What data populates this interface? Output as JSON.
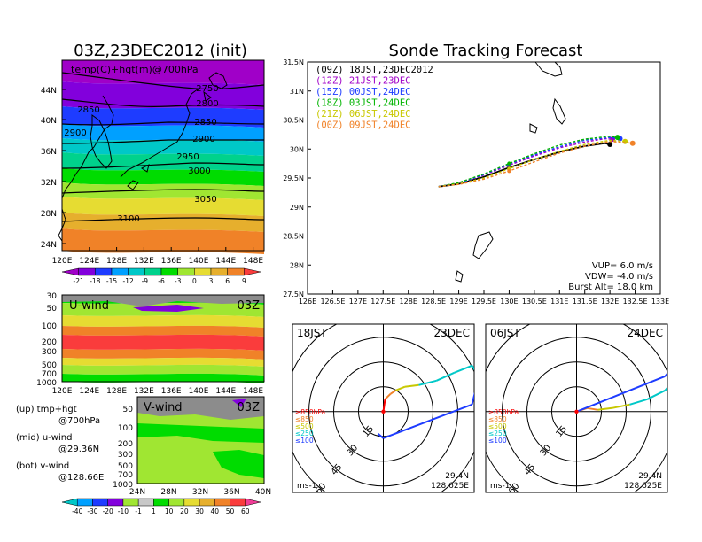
{
  "left_title": "03Z,23DEC2012 (init)",
  "right_title": "Sonde Tracking Forecast",
  "map_panel": {
    "label": "temp(C)+hgt(m)@700hPa",
    "lat_ticks": [
      "44N",
      "40N",
      "36N",
      "32N",
      "28N",
      "24N"
    ],
    "lon_ticks": [
      "120E",
      "124E",
      "128E",
      "132E",
      "136E",
      "140E",
      "144E",
      "148E"
    ],
    "contour_labels": [
      "2750",
      "2800",
      "2850",
      "2850",
      "2900",
      "2900",
      "2950",
      "3000",
      "3050",
      "3100"
    ],
    "colorbar_labels": [
      "-21",
      "-18",
      "-15",
      "-12",
      "-9",
      "-6",
      "-3",
      "0",
      "3",
      "6",
      "9"
    ],
    "colorbar_colors": [
      "#a000c8",
      "#8200dc",
      "#1e3cff",
      "#00a0ff",
      "#00c8c8",
      "#00d28c",
      "#00dc00",
      "#a0e632",
      "#e6dc32",
      "#e6af2d",
      "#f08228",
      "#fa3c3c"
    ]
  },
  "uwind_panel": {
    "title": "U-wind",
    "time": "03Z",
    "p_ticks": [
      "30",
      "50",
      "100",
      "200",
      "300",
      "500",
      "700",
      "1000"
    ],
    "lon_ticks": [
      "120E",
      "124E",
      "128E",
      "132E",
      "136E",
      "140E",
      "144E",
      "148E"
    ]
  },
  "vwind_panel": {
    "title": "V-wind",
    "time": "03Z",
    "p_ticks": [
      "50",
      "100",
      "200",
      "300",
      "500",
      "700",
      "1000"
    ],
    "lat_ticks": [
      "24N",
      "28N",
      "32N",
      "36N",
      "40N"
    ],
    "colorbar_labels": [
      "-40",
      "-30",
      "-20",
      "-10",
      "-1",
      "1",
      "10",
      "20",
      "30",
      "40",
      "50",
      "60"
    ],
    "colorbar_colors": [
      "#00c8c8",
      "#00a0ff",
      "#1e3cff",
      "#8200dc",
      "#a0e632",
      "#c8c8c8",
      "#00dc00",
      "#a0e632",
      "#e6dc32",
      "#e6af2d",
      "#f08228",
      "#fa3c3c",
      "#f03c96"
    ]
  },
  "legend_notes": [
    {
      "head": "(up) tmp+hgt",
      "sub": "@700hPa"
    },
    {
      "head": "(mid) u-wind",
      "sub": "@29.36N"
    },
    {
      "head": "(bot) v-wind",
      "sub": "@128.66E"
    }
  ],
  "track_panel": {
    "runs": [
      {
        "label": "(09Z)  18JST,23DEC2012",
        "color": "#000000"
      },
      {
        "label": "(12Z)  21JST,23DEC",
        "color": "#a000c8"
      },
      {
        "label": "(15Z)  00JST,24DEC",
        "color": "#1e3cff"
      },
      {
        "label": "(18Z)  03JST,24DEC",
        "color": "#00b400"
      },
      {
        "label": "(21Z)  06JST,24DEC",
        "color": "#c8c800"
      },
      {
        "label": "(00Z)  09JST,24DEC",
        "color": "#f08228"
      }
    ],
    "lat_ticks": [
      "31.5N",
      "31N",
      "30.5N",
      "30N",
      "29.5N",
      "29N",
      "28.5N",
      "28N",
      "27.5N"
    ],
    "lon_ticks": [
      "126E",
      "126.5E",
      "127E",
      "127.5E",
      "128E",
      "128.5E",
      "129E",
      "129.5E",
      "130E",
      "130.5E",
      "131E",
      "131.5E",
      "132E",
      "132.5E",
      "133E"
    ],
    "params": [
      "VUP= 6.0 m/s",
      "VDW= -4.0 m/s",
      "Burst Alt= 18.0 km"
    ]
  },
  "hodographs": [
    {
      "time": "18JST",
      "date": "23DEC",
      "lat": "29.4N",
      "lon": "128.625E",
      "unit": "ms-1",
      "rings": [
        "15",
        "30",
        "45",
        "60"
      ],
      "levels": [
        "≥850hPa",
        "≤850",
        "≤500",
        "≤250",
        "≤100"
      ],
      "level_colors": [
        "#fa0000",
        "#f08228",
        "#c8c800",
        "#00c8c8",
        "#1e3cff"
      ]
    },
    {
      "time": "06JST",
      "date": "24DEC",
      "lat": "29.4N",
      "lon": "128.625E",
      "unit": "ms-1",
      "rings": [
        "15",
        "30",
        "45",
        "60"
      ],
      "levels": [
        "≥850hPa",
        "≤850",
        "≤500",
        "≤250",
        "≤100"
      ],
      "level_colors": [
        "#fa0000",
        "#f08228",
        "#c8c800",
        "#00c8c8",
        "#1e3cff"
      ]
    }
  ],
  "chart_data": {
    "type": "line",
    "title": "Sonde Tracking Forecast",
    "xlim": [
      126,
      133
    ],
    "ylim": [
      27.5,
      31.5
    ],
    "start": {
      "lon": 128.6,
      "lat": 29.35
    },
    "series": [
      {
        "name": "(09Z) 18JST,23DEC2012",
        "x": [
          128.6,
          129.0,
          129.5,
          130.0,
          130.5,
          131.0,
          131.5,
          131.9,
          132.0
        ],
        "y": [
          29.35,
          29.4,
          29.52,
          29.68,
          29.82,
          29.95,
          30.05,
          30.1,
          30.08
        ]
      },
      {
        "name": "(12Z) 21JST,23DEC",
        "x": [
          128.6,
          129.0,
          129.5,
          130.0,
          130.5,
          131.0,
          131.5,
          131.9,
          132.05
        ],
        "y": [
          29.35,
          29.41,
          29.55,
          29.72,
          29.88,
          30.02,
          30.12,
          30.18,
          30.17
        ]
      },
      {
        "name": "(15Z) 00JST,24DEC",
        "x": [
          128.6,
          129.0,
          129.5,
          130.0,
          130.5,
          131.0,
          131.5,
          132.0,
          132.2
        ],
        "y": [
          29.35,
          29.41,
          29.56,
          29.74,
          29.9,
          30.04,
          30.15,
          30.2,
          30.18
        ]
      },
      {
        "name": "(18Z) 03JST,24DEC",
        "x": [
          128.6,
          129.0,
          129.5,
          130.0,
          130.5,
          131.0,
          131.5,
          132.0,
          132.15
        ],
        "y": [
          29.35,
          29.42,
          29.57,
          29.75,
          29.92,
          30.07,
          30.17,
          30.22,
          30.2
        ]
      },
      {
        "name": "(21Z) 06JST,24DEC",
        "x": [
          128.6,
          129.0,
          129.5,
          130.0,
          130.5,
          131.0,
          131.5,
          132.0,
          132.3
        ],
        "y": [
          29.35,
          29.4,
          29.5,
          29.66,
          29.82,
          29.96,
          30.08,
          30.15,
          30.13
        ]
      },
      {
        "name": "(00Z) 09JST,24DEC",
        "x": [
          128.6,
          129.0,
          129.5,
          130.0,
          130.5,
          131.0,
          131.5,
          132.0,
          132.45
        ],
        "y": [
          29.35,
          29.39,
          29.48,
          29.62,
          29.78,
          29.93,
          30.05,
          30.13,
          30.1
        ]
      }
    ]
  }
}
